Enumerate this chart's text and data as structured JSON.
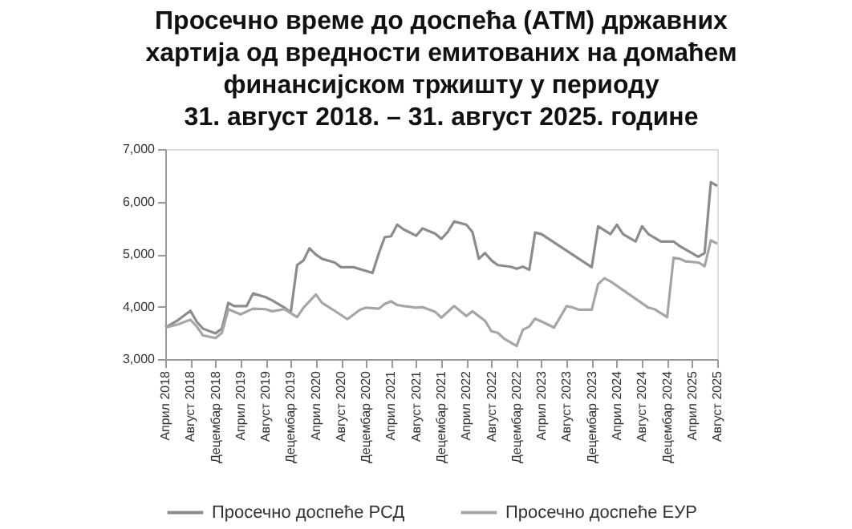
{
  "chart_data": {
    "type": "line",
    "title": [
      "Просечно време до доспећа (АТМ) државних",
      "хартија од вредности емитованих на домаћем",
      "финансијском тржишту у периоду",
      "31. август 2018. – 31. август 2025. године"
    ],
    "series": [
      {
        "name": "Просечно доспеће РСД",
        "color": "#8c8c8c",
        "x": [
          "2018-04",
          "2018-06",
          "2018-08",
          "2018-09",
          "2018-10",
          "2018-12",
          "2019-01",
          "2019-02",
          "2019-03",
          "2019-05",
          "2019-06",
          "2019-08",
          "2019-09",
          "2019-11",
          "2019-12",
          "2020-01",
          "2020-02",
          "2020-03",
          "2020-04",
          "2020-05",
          "2020-07",
          "2020-08",
          "2020-10",
          "2021-01",
          "2021-02",
          "2021-03",
          "2021-04",
          "2021-05",
          "2021-06",
          "2021-08",
          "2021-09",
          "2021-11",
          "2021-12",
          "2022-01",
          "2022-02",
          "2022-04",
          "2022-05",
          "2022-06",
          "2022-07",
          "2022-08",
          "2022-09",
          "2022-11",
          "2022-12",
          "2023-01",
          "2023-02",
          "2023-03",
          "2023-04",
          "2023-12",
          "2024-01",
          "2024-03",
          "2024-04",
          "2024-05",
          "2024-07",
          "2024-08",
          "2024-09",
          "2024-11",
          "2025-01",
          "2025-02",
          "2025-05",
          "2025-06",
          "2025-07",
          "2025-08"
        ],
        "values": [
          3600,
          3740,
          3920,
          3710,
          3580,
          3490,
          3580,
          4070,
          4010,
          4010,
          4250,
          4180,
          4120,
          3980,
          3890,
          4790,
          4880,
          5110,
          4990,
          4910,
          4840,
          4750,
          4750,
          4640,
          5020,
          5320,
          5340,
          5560,
          5470,
          5350,
          5490,
          5390,
          5290,
          5420,
          5620,
          5560,
          5420,
          4910,
          5020,
          4880,
          4790,
          4760,
          4720,
          4760,
          4700,
          5410,
          5380,
          4750,
          5530,
          5380,
          5560,
          5380,
          5240,
          5530,
          5380,
          5240,
          5240,
          5150,
          4950,
          5020,
          6370,
          6300
        ]
      },
      {
        "name": "Просечно доспеће ЕУР",
        "color": "#a6a6a6",
        "x": [
          "2018-04",
          "2018-06",
          "2018-08",
          "2018-09",
          "2018-10",
          "2018-12",
          "2019-01",
          "2019-02",
          "2019-04",
          "2019-06",
          "2019-08",
          "2019-09",
          "2019-11",
          "2020-01",
          "2020-02",
          "2020-04",
          "2020-05",
          "2020-07",
          "2020-09",
          "2020-11",
          "2020-12",
          "2021-02",
          "2021-03",
          "2021-04",
          "2021-05",
          "2021-06",
          "2021-08",
          "2021-09",
          "2021-11",
          "2021-12",
          "2022-02",
          "2022-04",
          "2022-05",
          "2022-07",
          "2022-08",
          "2022-09",
          "2022-10",
          "2022-12",
          "2023-01",
          "2023-02",
          "2023-03",
          "2023-05",
          "2023-06",
          "2023-08",
          "2023-09",
          "2023-10",
          "2023-12",
          "2024-01",
          "2024-02",
          "2024-03",
          "2024-09",
          "2024-10",
          "2024-12",
          "2025-01",
          "2025-02",
          "2025-03",
          "2025-05",
          "2025-06",
          "2025-07",
          "2025-08"
        ],
        "values": [
          3600,
          3660,
          3750,
          3620,
          3450,
          3400,
          3500,
          3950,
          3850,
          3960,
          3950,
          3910,
          3950,
          3800,
          3980,
          4230,
          4070,
          3920,
          3760,
          3940,
          3980,
          3960,
          4050,
          4100,
          4030,
          4010,
          3980,
          3990,
          3900,
          3790,
          4010,
          3820,
          3910,
          3730,
          3530,
          3500,
          3390,
          3250,
          3560,
          3620,
          3770,
          3660,
          3600,
          4010,
          3980,
          3940,
          3940,
          4430,
          4540,
          4480,
          3980,
          3950,
          3800,
          4930,
          4910,
          4860,
          4840,
          4770,
          5260,
          5200
        ]
      }
    ],
    "xlim": [
      "2018-04",
      "2025-08"
    ],
    "xticks": [
      {
        "value": "2018-04",
        "label": "Април 2018"
      },
      {
        "value": "2018-08",
        "label": "Август 2018"
      },
      {
        "value": "2018-12",
        "label": "Децембар 2018"
      },
      {
        "value": "2019-04",
        "label": "Април 2019"
      },
      {
        "value": "2019-08",
        "label": "Август 2019"
      },
      {
        "value": "2019-12",
        "label": "Децембар 2019"
      },
      {
        "value": "2020-04",
        "label": "Април 2020"
      },
      {
        "value": "2020-08",
        "label": "Август 2020"
      },
      {
        "value": "2020-12",
        "label": "Децембар 2020"
      },
      {
        "value": "2021-04",
        "label": "Април 2021"
      },
      {
        "value": "2021-08",
        "label": "Август 2021"
      },
      {
        "value": "2021-12",
        "label": "Децембар 2021"
      },
      {
        "value": "2022-04",
        "label": "Април 2022"
      },
      {
        "value": "2022-08",
        "label": "Август 2022"
      },
      {
        "value": "2022-12",
        "label": "Децембар 2022"
      },
      {
        "value": "2023-04",
        "label": "Април 2023"
      },
      {
        "value": "2023-08",
        "label": "Август 2023"
      },
      {
        "value": "2023-12",
        "label": "Децембар 2023"
      },
      {
        "value": "2024-04",
        "label": "Април 2024"
      },
      {
        "value": "2024-08",
        "label": "Август 2024"
      },
      {
        "value": "2024-12",
        "label": "Децембар 2024"
      },
      {
        "value": "2025-04",
        "label": "Април 2025"
      },
      {
        "value": "2025-08",
        "label": "Август 2025"
      }
    ],
    "ylim": [
      3000,
      7000
    ],
    "yticks": [
      {
        "value": 3000,
        "label": "3,000"
      },
      {
        "value": 4000,
        "label": "4,000"
      },
      {
        "value": 5000,
        "label": "5,000"
      },
      {
        "value": 6000,
        "label": "6,000"
      },
      {
        "value": 7000,
        "label": "7,000"
      }
    ],
    "legend": "bottom",
    "grid": false,
    "marker": "none",
    "line_style": "solid"
  }
}
